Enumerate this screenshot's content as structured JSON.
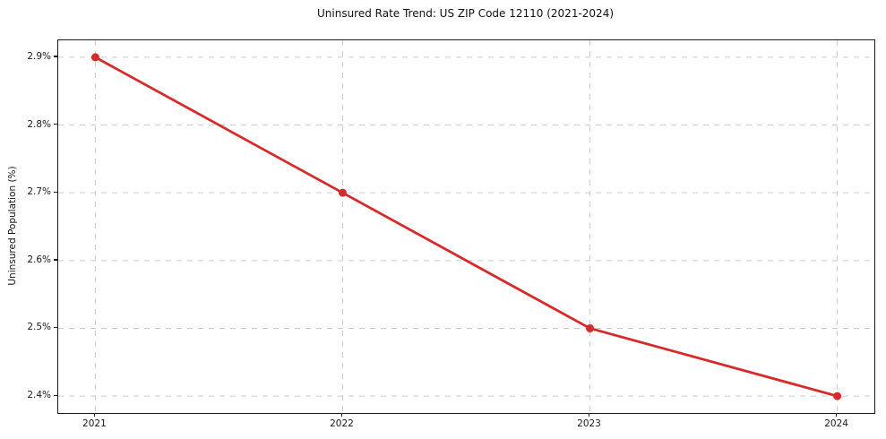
{
  "chart_data": {
    "type": "line",
    "title": "Uninsured Rate Trend: US ZIP Code 12110 (2021-2024)",
    "xlabel": "",
    "ylabel": "Uninsured Population (%)",
    "x": [
      2021,
      2022,
      2023,
      2024
    ],
    "x_tick_labels": [
      "2021",
      "2022",
      "2023",
      "2024"
    ],
    "series": [
      {
        "name": "Uninsured Population (%)",
        "values": [
          2.9,
          2.7,
          2.5,
          2.4
        ]
      }
    ],
    "y_ticks": [
      2.4,
      2.5,
      2.6,
      2.7,
      2.8,
      2.9
    ],
    "y_tick_labels": [
      "2.4%",
      "2.5%",
      "2.6%",
      "2.7%",
      "2.8%",
      "2.9%"
    ],
    "xlim": [
      2020.85,
      2024.15
    ],
    "ylim": [
      2.375,
      2.925
    ],
    "grid": true,
    "grid_style": "dashed",
    "grid_color": "#cccccc",
    "line_color": "#d62b2b",
    "marker": "circle",
    "legend": "none",
    "background": "#ffffff"
  }
}
